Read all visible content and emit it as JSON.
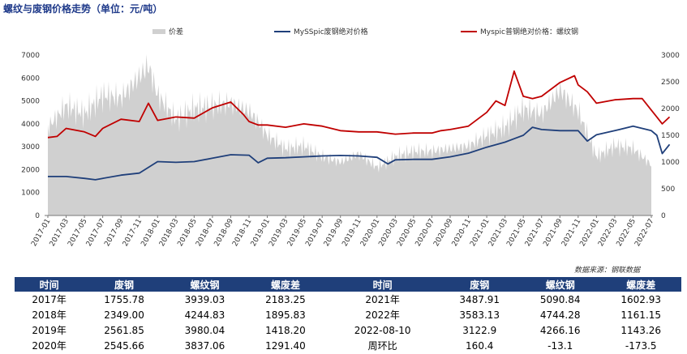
{
  "title": "螺纹与废钢价格走势（单位：元/吨）",
  "source": "数据来源：钢联数据",
  "colors": {
    "spread": "#d0d0d0",
    "scrap": "#1f3f7a",
    "rebar": "#c00000",
    "header": "#1f3f7a",
    "down": "#2e9e3a",
    "up": "#d02020"
  },
  "chart_data": {
    "type": "line",
    "legend": [
      "价差",
      "MySSpic废钢绝对价格",
      "Myspic普钢绝对价格：螺纹钢"
    ],
    "x": [
      "2017-01",
      "2017-03",
      "2017-05",
      "2017-07",
      "2017-09",
      "2017-11",
      "2018-01",
      "2018-03",
      "2018-05",
      "2018-07",
      "2018-09",
      "2018-11",
      "2019-01",
      "2019-03",
      "2019-05",
      "2019-07",
      "2019-09",
      "2019-11",
      "2020-01",
      "2020-03",
      "2020-05",
      "2020-07",
      "2020-09",
      "2020-11",
      "2021-01",
      "2021-03",
      "2021-05",
      "2021-07",
      "2021-09",
      "2021-11",
      "2022-01",
      "2022-03",
      "2022-05",
      "2022-07"
    ],
    "left_axis": {
      "min": 0,
      "max": 7000,
      "ticks": [
        0,
        1000,
        2000,
        3000,
        4000,
        5000,
        6000,
        7000
      ]
    },
    "right_axis": {
      "min": 0,
      "max": 3000,
      "ticks": [
        0,
        500,
        1000,
        1500,
        2000,
        2500,
        3000
      ]
    },
    "series": [
      {
        "name": "价差",
        "type": "area",
        "axis": "right",
        "x": [
          0,
          1,
          2,
          3,
          4,
          5,
          5.5,
          6,
          7,
          8,
          9,
          10,
          11,
          11.5,
          12,
          13,
          14,
          15,
          16,
          17,
          18,
          19,
          20,
          21,
          22,
          23,
          24,
          25,
          26,
          27,
          28,
          29,
          30,
          31,
          32,
          33,
          33.5,
          34
        ],
        "values": [
          1650,
          2050,
          1900,
          2250,
          2200,
          2600,
          2800,
          2250,
          1800,
          2000,
          2050,
          2100,
          1950,
          1750,
          1500,
          1250,
          1300,
          1100,
          1000,
          1150,
          900,
          1100,
          1200,
          1200,
          1250,
          1300,
          1500,
          1650,
          2000,
          1900,
          2350,
          1950,
          1100,
          1300,
          1250,
          950,
          1100,
          1000
        ]
      },
      {
        "name": "MySSpic废钢绝对价格",
        "type": "line",
        "axis": "left",
        "x": [
          0,
          1,
          2,
          2.6,
          3,
          4,
          5,
          5.5,
          6,
          7,
          8,
          9,
          10,
          11,
          11.5,
          12,
          13,
          14,
          15,
          16,
          17,
          18,
          18.6,
          19,
          20,
          21,
          22,
          23,
          24,
          25,
          26,
          26.5,
          27,
          28,
          29,
          29.5,
          30,
          31,
          32,
          33,
          33.3,
          33.6,
          34
        ],
        "values": [
          1700,
          1700,
          1620,
          1560,
          1620,
          1760,
          1850,
          2100,
          2350,
          2320,
          2350,
          2500,
          2650,
          2630,
          2300,
          2500,
          2520,
          2560,
          2600,
          2620,
          2600,
          2540,
          2250,
          2430,
          2450,
          2450,
          2560,
          2720,
          2980,
          3200,
          3500,
          3850,
          3750,
          3700,
          3700,
          3250,
          3520,
          3700,
          3900,
          3700,
          3500,
          2700,
          3100
        ]
      },
      {
        "name": "Myspic普钢绝对价格：螺纹钢",
        "type": "line",
        "axis": "left",
        "x": [
          0,
          0.5,
          1,
          2,
          2.6,
          3,
          4,
          5,
          5.5,
          6,
          7,
          8,
          9,
          10,
          10.7,
          11,
          11.5,
          12,
          13,
          14,
          14.5,
          15,
          16,
          17,
          18,
          19,
          20,
          21,
          21.5,
          22,
          23,
          24,
          24.5,
          25,
          25.5,
          26,
          26.5,
          27,
          28,
          28.8,
          29,
          29.5,
          30,
          31,
          32,
          32.5,
          33,
          33.3,
          33.6,
          34
        ],
        "values": [
          3400,
          3450,
          3800,
          3650,
          3450,
          3800,
          4200,
          4100,
          4900,
          4150,
          4300,
          4250,
          4700,
          4950,
          4400,
          4100,
          3950,
          3950,
          3850,
          4000,
          3950,
          3900,
          3700,
          3650,
          3650,
          3550,
          3600,
          3600,
          3700,
          3750,
          3900,
          4500,
          5000,
          4800,
          6300,
          5200,
          5100,
          5200,
          5800,
          6100,
          5700,
          5400,
          4900,
          5050,
          5100,
          5100,
          4600,
          4300,
          4000,
          4300
        ]
      }
    ]
  },
  "table": {
    "headers": [
      "时间",
      "废钢",
      "螺纹钢",
      "螺废差",
      "时间",
      "废钢",
      "螺纹钢",
      "螺废差"
    ],
    "rows": [
      [
        "2017年",
        "1755.78",
        "3939.03",
        "2183.25",
        "2021年",
        "3487.91",
        "5090.84",
        "1602.93"
      ],
      [
        "2018年",
        "2349.00",
        "4244.83",
        "1895.83",
        "2022年",
        "3583.13",
        "4744.28",
        "1161.15"
      ],
      [
        "2019年",
        "2561.85",
        "3980.04",
        "1418.20",
        "2022-08-10",
        "3122.9",
        "4266.16",
        "1143.26"
      ],
      [
        "2020年",
        "2545.66",
        "3837.06",
        "1291.40",
        "周环比",
        "160.4",
        "-13.1",
        "-173.5"
      ]
    ]
  }
}
